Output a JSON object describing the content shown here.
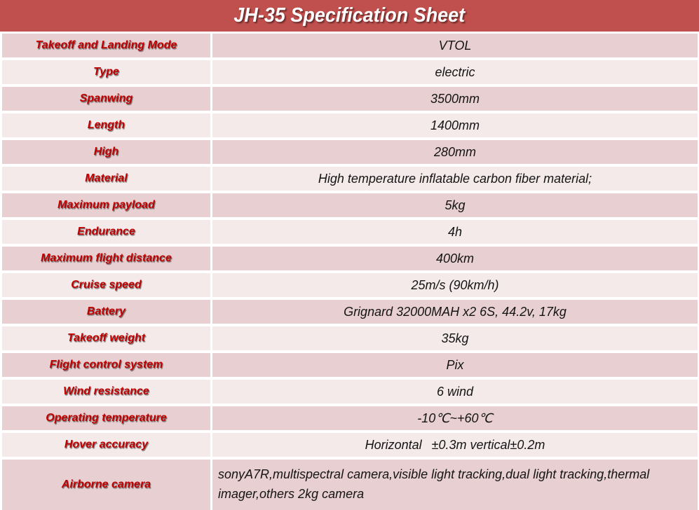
{
  "title": "JH-35 Specification Sheet",
  "colors": {
    "header_bg": "#c0504d",
    "row_dark": "#e8cfd1",
    "row_light": "#f5eaea",
    "label_red": "#c00000",
    "value_text": "#141414",
    "divider": "#ffffff"
  },
  "table": {
    "rows": [
      {
        "label": "Takeoff and Landing Mode",
        "value": "VTOL"
      },
      {
        "label": "Type",
        "value": "electric"
      },
      {
        "label": "Spanwing",
        "value": "3500mm"
      },
      {
        "label": "Length",
        "value": "1400mm"
      },
      {
        "label": "High",
        "value": "280mm"
      },
      {
        "label": "Material",
        "value": "High temperature inflatable carbon fiber material;"
      },
      {
        "label": "Maximum payload",
        "value": "5kg"
      },
      {
        "label": "Endurance",
        "value": "4h"
      },
      {
        "label": "Maximum flight distance",
        "value": "400km"
      },
      {
        "label": "Cruise speed",
        "value": "25m/s (90km/h)"
      },
      {
        "label": "Battery",
        "value": "Grignard 32000MAH x2 6S, 44.2v, 17kg"
      },
      {
        "label": "Takeoff weight",
        "value": "35kg"
      },
      {
        "label": "Flight control system",
        "value": "Pix"
      },
      {
        "label": "Wind resistance",
        "value": "6 wind"
      },
      {
        "label": "Operating temperature",
        "value": "-10℃~+60℃"
      },
      {
        "label": "Hover accuracy",
        "value": "Horizontal  ±0.3m vertical±0.2m"
      },
      {
        "label": "Airborne camera",
        "value": "sonyA7R,multispectral camera,visible light tracking,dual light tracking,thermal imager,others 2kg camera",
        "tall": true
      }
    ]
  }
}
